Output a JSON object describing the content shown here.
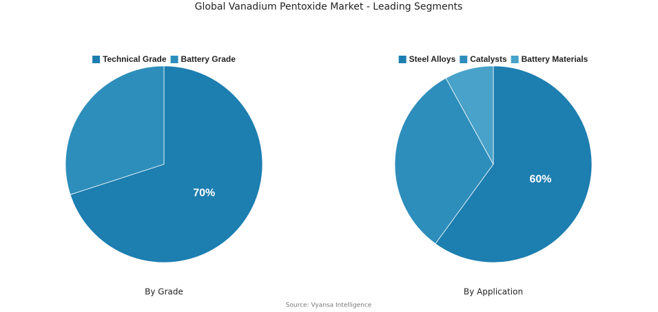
{
  "title": "Global Vanadium Pentoxide Market - Leading Segments",
  "source": "Source: Vyansa Intelligence",
  "chart_data": [
    {
      "type": "pie",
      "title": "By Grade",
      "categories": [
        "Technical Grade",
        "Battery Grade"
      ],
      "values": [
        70,
        30
      ],
      "value_labels": [
        "70%",
        null
      ],
      "colors": [
        "#1d7eb0",
        "#2e8ebb"
      ]
    },
    {
      "type": "pie",
      "title": "By Application",
      "categories": [
        "Steel Alloys",
        "Catalysts",
        "Battery Materials"
      ],
      "values": [
        60,
        32,
        8
      ],
      "value_labels": [
        "60%",
        null,
        null
      ],
      "colors": [
        "#1d7eb0",
        "#2e8ebb",
        "#48a2c9"
      ]
    }
  ]
}
